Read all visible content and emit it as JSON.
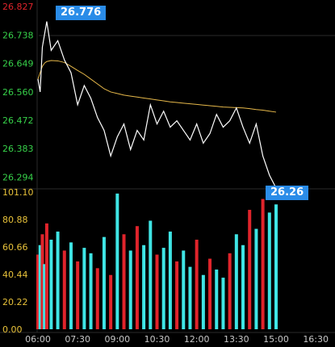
{
  "colors": {
    "background": "#000000",
    "price_line": "#ffffff",
    "avg_line": "#e6b84a",
    "axis_top_label": "#e0242b",
    "axis_price_label": "#37d24a",
    "axis_vol_label": "#e8c23a",
    "time_label": "#c8c8c8",
    "vol_up": "#3fe5e5",
    "vol_down": "#e0242b",
    "grid": "#2a2a2a",
    "label_box": "#2a8ce8"
  },
  "labels": {
    "high_value": "26.776",
    "last_value": "26.26"
  },
  "chart_data": [
    {
      "type": "line",
      "title": "",
      "y_ticks": [
        "26.827",
        "26.738",
        "26.649",
        "26.560",
        "26.472",
        "26.383",
        "26.294"
      ],
      "ylim": [
        26.27,
        26.827
      ],
      "x_ticks": [
        "06:00",
        "07:30",
        "09:00",
        "10:30",
        "12:00",
        "13:30",
        "15:00",
        "16:30"
      ],
      "x": [
        "06:00",
        "06:05",
        "06:10",
        "06:15",
        "06:20",
        "06:30",
        "06:45",
        "07:00",
        "07:15",
        "07:30",
        "07:45",
        "08:00",
        "08:15",
        "08:30",
        "08:45",
        "09:00",
        "09:15",
        "09:30",
        "09:45",
        "10:00",
        "10:15",
        "10:30",
        "10:45",
        "11:00",
        "11:15",
        "11:30",
        "11:45",
        "12:00",
        "12:15",
        "12:30",
        "12:45",
        "13:00",
        "13:15",
        "13:30",
        "13:45",
        "14:00",
        "14:15",
        "14:30",
        "14:45",
        "15:00"
      ],
      "series": [
        {
          "values": [
            26.6,
            26.56,
            26.7,
            26.74,
            26.78,
            26.69,
            26.72,
            26.66,
            26.62,
            26.52,
            26.58,
            26.54,
            26.48,
            26.44,
            26.36,
            26.42,
            26.46,
            26.38,
            26.44,
            26.41,
            26.52,
            26.46,
            26.5,
            26.45,
            26.47,
            26.44,
            26.41,
            26.46,
            26.4,
            26.43,
            26.49,
            26.45,
            26.47,
            26.51,
            26.45,
            26.4,
            26.46,
            26.36,
            26.3,
            26.26
          ]
        },
        {
          "values": [
            26.6,
            26.62,
            26.64,
            26.65,
            26.655,
            26.658,
            26.657,
            26.652,
            26.64,
            26.627,
            26.615,
            26.6,
            26.585,
            26.57,
            26.56,
            26.555,
            26.55,
            26.547,
            26.544,
            26.541,
            26.538,
            26.535,
            26.532,
            26.529,
            26.527,
            26.525,
            26.523,
            26.521,
            26.519,
            26.517,
            26.515,
            26.513,
            26.512,
            26.511,
            26.51,
            26.508,
            26.505,
            26.503,
            26.5,
            26.497
          ]
        }
      ]
    },
    {
      "type": "bar",
      "y_ticks": [
        "101.10",
        "80.88",
        "60.66",
        "40.44",
        "20.22",
        "0.00"
      ],
      "ylim": [
        0,
        101.1
      ],
      "x": [
        "06:00",
        "06:05",
        "06:10",
        "06:15",
        "06:20",
        "06:30",
        "06:45",
        "07:00",
        "07:15",
        "07:30",
        "07:45",
        "08:00",
        "08:15",
        "08:30",
        "08:45",
        "09:00",
        "09:15",
        "09:30",
        "09:45",
        "10:00",
        "10:15",
        "10:30",
        "10:45",
        "11:00",
        "11:15",
        "11:30",
        "11:45",
        "12:00",
        "12:15",
        "12:30",
        "12:45",
        "13:00",
        "13:15",
        "13:30",
        "13:45",
        "14:00",
        "14:15",
        "14:30",
        "14:45",
        "15:00"
      ],
      "values": [
        55,
        62,
        70,
        48,
        78,
        66,
        72,
        58,
        64,
        50,
        60,
        56,
        45,
        68,
        40,
        100,
        70,
        58,
        76,
        62,
        80,
        55,
        60,
        72,
        50,
        58,
        46,
        66,
        40,
        52,
        44,
        38,
        56,
        70,
        62,
        88,
        74,
        96,
        86,
        92
      ],
      "colors": [
        "down",
        "up",
        "down",
        "up",
        "down",
        "up",
        "up",
        "down",
        "up",
        "down",
        "up",
        "up",
        "down",
        "up",
        "down",
        "up",
        "down",
        "up",
        "down",
        "up",
        "up",
        "down",
        "up",
        "up",
        "down",
        "up",
        "up",
        "down",
        "up",
        "down",
        "up",
        "up",
        "down",
        "up",
        "up",
        "down",
        "up",
        "down",
        "up",
        "up"
      ]
    }
  ]
}
